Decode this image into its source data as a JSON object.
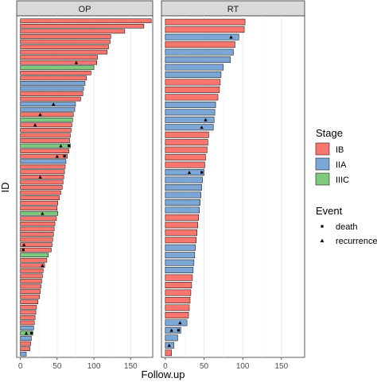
{
  "chart_data": {
    "type": "bar",
    "orientation": "horizontal",
    "xlabel": "Follow.up",
    "ylabel": "ID",
    "xlim": [
      -5,
      180
    ],
    "xticks": [
      0,
      50,
      100,
      150
    ],
    "facets": [
      {
        "name": "OP",
        "bars": [
          {
            "stage": "IB",
            "value": 178
          },
          {
            "stage": "IB",
            "value": 168
          },
          {
            "stage": "IB",
            "value": 142
          },
          {
            "stage": "IB",
            "value": 123
          },
          {
            "stage": "IB",
            "value": 122
          },
          {
            "stage": "IB",
            "value": 120
          },
          {
            "stage": "IB",
            "value": 118
          },
          {
            "stage": "IB",
            "value": 105
          },
          {
            "stage": "IB",
            "value": 104,
            "event": "recurrence",
            "event_at": 76
          },
          {
            "stage": "IIIC",
            "value": 100
          },
          {
            "stage": "IB",
            "value": 96
          },
          {
            "stage": "IB",
            "value": 90
          },
          {
            "stage": "IIA",
            "value": 88
          },
          {
            "stage": "IIA",
            "value": 86
          },
          {
            "stage": "IB",
            "value": 85
          },
          {
            "stage": "IB",
            "value": 82
          },
          {
            "stage": "IIA",
            "value": 75,
            "event": "recurrence",
            "event_at": 45
          },
          {
            "stage": "IIA",
            "value": 74
          },
          {
            "stage": "IB",
            "value": 72,
            "event": "recurrence",
            "event_at": 27
          },
          {
            "stage": "IIIC",
            "value": 71
          },
          {
            "stage": "IB",
            "value": 70,
            "event": "recurrence",
            "event_at": 20
          },
          {
            "stage": "IB",
            "value": 69
          },
          {
            "stage": "IB",
            "value": 68
          },
          {
            "stage": "IB",
            "value": 67
          },
          {
            "stage": "IIIC",
            "value": 68,
            "event": "recurrence",
            "event_at": 55,
            "death_at": 66
          },
          {
            "stage": "IB",
            "value": 66
          },
          {
            "stage": "IB",
            "value": 64,
            "event": "recurrence",
            "event_at": 50,
            "death_at": 60
          },
          {
            "stage": "IIA",
            "value": 62
          },
          {
            "stage": "IB",
            "value": 61
          },
          {
            "stage": "IB",
            "value": 60
          },
          {
            "stage": "IB",
            "value": 59,
            "event": "recurrence",
            "event_at": 27
          },
          {
            "stage": "IB",
            "value": 58
          },
          {
            "stage": "IB",
            "value": 57
          },
          {
            "stage": "IB",
            "value": 55
          },
          {
            "stage": "IB",
            "value": 53
          },
          {
            "stage": "IB",
            "value": 51
          },
          {
            "stage": "IB",
            "value": 50
          },
          {
            "stage": "IIIC",
            "value": 51,
            "event": "recurrence",
            "event_at": 30
          },
          {
            "stage": "IB",
            "value": 49
          },
          {
            "stage": "IB",
            "value": 47
          },
          {
            "stage": "IB",
            "value": 46
          },
          {
            "stage": "IB",
            "value": 45
          },
          {
            "stage": "IB",
            "value": 44
          },
          {
            "stage": "IB",
            "value": 43,
            "event": "recurrence",
            "event_at": 5
          },
          {
            "stage": "IB",
            "value": 42,
            "event": "death",
            "event_at": 4
          },
          {
            "stage": "IIIC",
            "value": 38
          },
          {
            "stage": "IB",
            "value": 36
          },
          {
            "stage": "IB",
            "value": 33,
            "event": "recurrence",
            "event_at": 30
          },
          {
            "stage": "IB",
            "value": 31
          },
          {
            "stage": "IB",
            "value": 30
          },
          {
            "stage": "IB",
            "value": 29
          },
          {
            "stage": "IB",
            "value": 28
          },
          {
            "stage": "IB",
            "value": 27
          },
          {
            "stage": "IB",
            "value": 26
          },
          {
            "stage": "IB",
            "value": 24
          },
          {
            "stage": "IB",
            "value": 22
          },
          {
            "stage": "IB",
            "value": 21
          },
          {
            "stage": "IB",
            "value": 20
          },
          {
            "stage": "IB",
            "value": 19
          },
          {
            "stage": "IIA",
            "value": 18
          },
          {
            "stage": "IIIC",
            "value": 17,
            "event": "recurrence",
            "event_at": 8,
            "death_at": 15
          },
          {
            "stage": "IIA",
            "value": 15
          },
          {
            "stage": "IB",
            "value": 14
          },
          {
            "stage": "IB",
            "value": 13
          },
          {
            "stage": "IIA",
            "value": 8
          }
        ]
      },
      {
        "name": "RT",
        "bars": [
          {
            "stage": "IB",
            "value": 103
          },
          {
            "stage": "IB",
            "value": 102
          },
          {
            "stage": "IIA",
            "value": 95,
            "event": "recurrence",
            "event_at": 85
          },
          {
            "stage": "IB",
            "value": 90
          },
          {
            "stage": "IIA",
            "value": 88
          },
          {
            "stage": "IIA",
            "value": 84
          },
          {
            "stage": "IIA",
            "value": 75
          },
          {
            "stage": "IIA",
            "value": 72
          },
          {
            "stage": "IB",
            "value": 71
          },
          {
            "stage": "IB",
            "value": 70
          },
          {
            "stage": "IB",
            "value": 68
          },
          {
            "stage": "IIA",
            "value": 65
          },
          {
            "stage": "IIA",
            "value": 64
          },
          {
            "stage": "IIA",
            "value": 63,
            "event": "recurrence",
            "event_at": 52
          },
          {
            "stage": "IIA",
            "value": 62,
            "event": "recurrence",
            "event_at": 47
          },
          {
            "stage": "IB",
            "value": 56
          },
          {
            "stage": "IB",
            "value": 55
          },
          {
            "stage": "IB",
            "value": 54
          },
          {
            "stage": "IB",
            "value": 52
          },
          {
            "stage": "IB",
            "value": 51
          },
          {
            "stage": "IIA",
            "value": 50,
            "event": "recurrence",
            "event_at": 31,
            "death_at": 47
          },
          {
            "stage": "IIA",
            "value": 48
          },
          {
            "stage": "IIA",
            "value": 47
          },
          {
            "stage": "IIA",
            "value": 46
          },
          {
            "stage": "IIA",
            "value": 45
          },
          {
            "stage": "IIA",
            "value": 44
          },
          {
            "stage": "IB",
            "value": 43
          },
          {
            "stage": "IB",
            "value": 42
          },
          {
            "stage": "IB",
            "value": 41
          },
          {
            "stage": "IB",
            "value": 40
          },
          {
            "stage": "IIA",
            "value": 39
          },
          {
            "stage": "IIA",
            "value": 38
          },
          {
            "stage": "IIA",
            "value": 37
          },
          {
            "stage": "IIA",
            "value": 36
          },
          {
            "stage": "IB",
            "value": 35
          },
          {
            "stage": "IB",
            "value": 34
          },
          {
            "stage": "IB",
            "value": 33
          },
          {
            "stage": "IB",
            "value": 32
          },
          {
            "stage": "IB",
            "value": 31
          },
          {
            "stage": "IB",
            "value": 30
          },
          {
            "stage": "IIA",
            "value": 28,
            "event": "recurrence",
            "event_at": 19
          },
          {
            "stage": "IIA",
            "value": 20,
            "event": "recurrence",
            "event_at": 8,
            "death_at": 17
          },
          {
            "stage": "IIA",
            "value": 16
          },
          {
            "stage": "IIA",
            "value": 11,
            "event": "recurrence",
            "event_at": 5
          },
          {
            "stage": "IB",
            "value": 8
          }
        ]
      }
    ],
    "legend_stage": {
      "title": "Stage",
      "entries": [
        {
          "label": "IB",
          "color": "#F8766D"
        },
        {
          "label": "IIA",
          "color": "#7CA6D6"
        },
        {
          "label": "IIIC",
          "color": "#7FC97F"
        }
      ]
    },
    "legend_event": {
      "title": "Event",
      "entries": [
        {
          "label": "death",
          "shape": "square"
        },
        {
          "label": "recurrence",
          "shape": "triangle"
        }
      ]
    },
    "legend_placement": "right",
    "grid": true
  }
}
